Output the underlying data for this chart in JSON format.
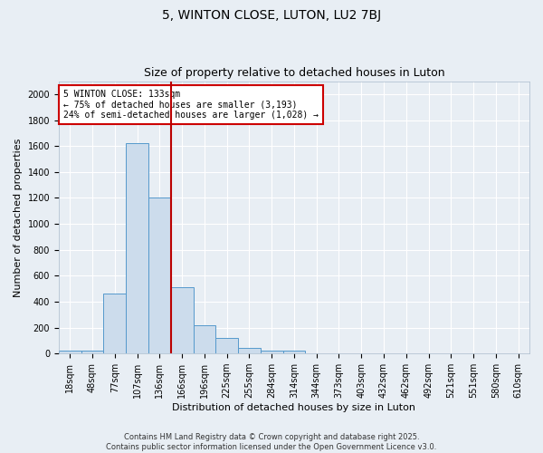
{
  "title1": "5, WINTON CLOSE, LUTON, LU2 7BJ",
  "title2": "Size of property relative to detached houses in Luton",
  "xlabel": "Distribution of detached houses by size in Luton",
  "ylabel": "Number of detached properties",
  "categories": [
    "18sqm",
    "48sqm",
    "77sqm",
    "107sqm",
    "136sqm",
    "166sqm",
    "196sqm",
    "225sqm",
    "255sqm",
    "284sqm",
    "314sqm",
    "344sqm",
    "373sqm",
    "403sqm",
    "432sqm",
    "462sqm",
    "492sqm",
    "521sqm",
    "551sqm",
    "580sqm",
    "610sqm"
  ],
  "values": [
    20,
    20,
    460,
    1620,
    1200,
    510,
    220,
    120,
    40,
    25,
    20,
    5,
    5,
    3,
    2,
    2,
    2,
    2,
    1,
    1,
    1
  ],
  "bar_color": "#ccdcec",
  "bar_edge_color": "#5599cc",
  "vline_x": 4.5,
  "vline_color": "#bb0000",
  "annotation_text": "5 WINTON CLOSE: 133sqm\n← 75% of detached houses are smaller (3,193)\n24% of semi-detached houses are larger (1,028) →",
  "annotation_box_color": "#ffffff",
  "annotation_box_edge": "#cc0000",
  "ylim": [
    0,
    2100
  ],
  "yticks": [
    0,
    200,
    400,
    600,
    800,
    1000,
    1200,
    1400,
    1600,
    1800,
    2000
  ],
  "footer1": "Contains HM Land Registry data © Crown copyright and database right 2025.",
  "footer2": "Contains public sector information licensed under the Open Government Licence v3.0.",
  "bg_color": "#e8eef4",
  "grid_color": "#ffffff",
  "title1_fontsize": 10,
  "title2_fontsize": 9,
  "tick_fontsize": 7,
  "ylabel_fontsize": 8,
  "xlabel_fontsize": 8,
  "footer_fontsize": 6,
  "annot_fontsize": 7
}
